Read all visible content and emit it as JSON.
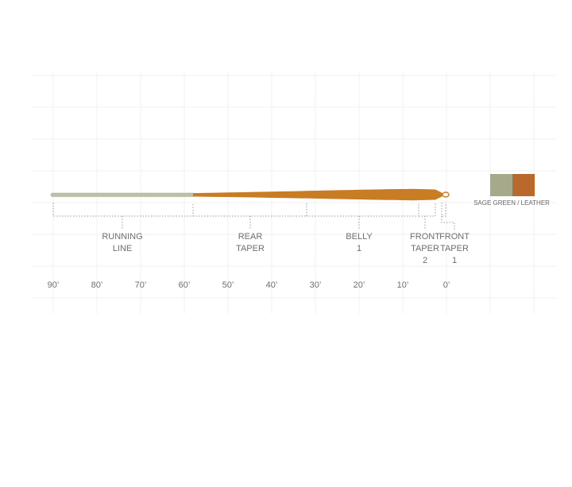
{
  "segments": [
    {
      "lines": [
        "RUNNING",
        "LINE"
      ]
    },
    {
      "lines": [
        "REAR",
        "TAPER"
      ]
    },
    {
      "lines": [
        "BELLY",
        "1"
      ]
    },
    {
      "lines": [
        "FRONT",
        "TAPER",
        "2"
      ]
    },
    {
      "lines": [
        "FRONT",
        "TAPER",
        "1"
      ]
    }
  ],
  "scale": [
    "90’",
    "80’",
    "70’",
    "60’",
    "50’",
    "40’",
    "30’",
    "20’",
    "10’",
    "0’"
  ],
  "legend": {
    "label": "SAGE GREEN / LEATHER"
  }
}
